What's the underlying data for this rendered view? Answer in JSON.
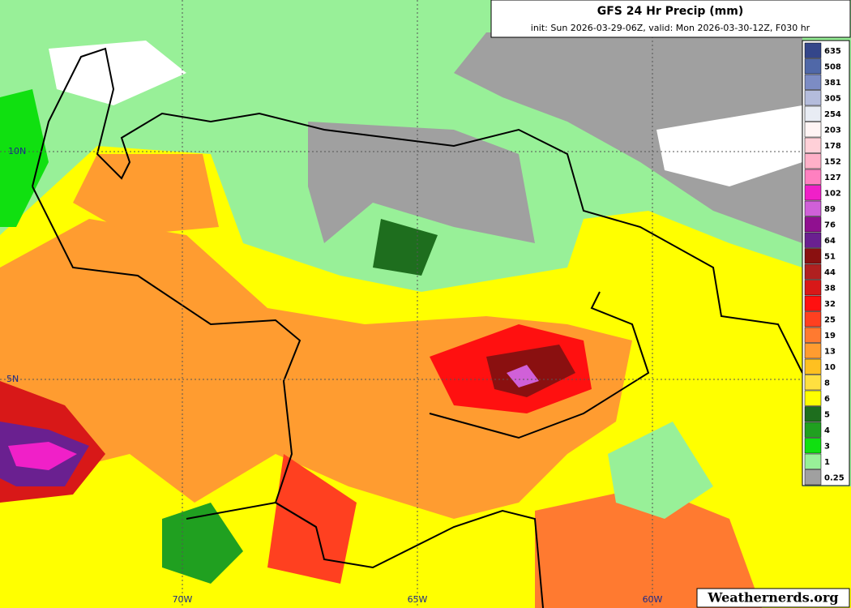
{
  "header": {
    "title": "GFS 24 Hr Precip (mm)",
    "subtitle": "init: Sun 2026-03-29-06Z, valid: Mon 2026-03-30-12Z, F030 hr"
  },
  "legend": {
    "items": [
      {
        "label": 635,
        "color": "#34468a"
      },
      {
        "label": 508,
        "color": "#5068a8"
      },
      {
        "label": 381,
        "color": "#7c8cc4"
      },
      {
        "label": 305,
        "color": "#b4bcdc"
      },
      {
        "label": 254,
        "color": "#e8ecf4"
      },
      {
        "label": 203,
        "color": "#fff4f4"
      },
      {
        "label": 178,
        "color": "#ffd0d8"
      },
      {
        "label": 152,
        "color": "#ffb0c8"
      },
      {
        "label": 127,
        "color": "#ff80c0"
      },
      {
        "label": 102,
        "color": "#f020c8"
      },
      {
        "label": 89,
        "color": "#d060d8"
      },
      {
        "label": 76,
        "color": "#901090"
      },
      {
        "label": 64,
        "color": "#6a2090"
      },
      {
        "label": 51,
        "color": "#8a1010"
      },
      {
        "label": 44,
        "color": "#b02020"
      },
      {
        "label": 38,
        "color": "#d81818"
      },
      {
        "label": 32,
        "color": "#ff1010"
      },
      {
        "label": 25,
        "color": "#ff4020"
      },
      {
        "label": 19,
        "color": "#ff7a30"
      },
      {
        "label": 13,
        "color": "#ff9c30"
      },
      {
        "label": 10,
        "color": "#ffc020"
      },
      {
        "label": 8,
        "color": "#ffe040"
      },
      {
        "label": 6,
        "color": "#ffff00"
      },
      {
        "label": 5,
        "color": "#1e6e1e"
      },
      {
        "label": 4,
        "color": "#20a020"
      },
      {
        "label": 3,
        "color": "#10e010"
      },
      {
        "label": 1,
        "color": "#98f098"
      },
      {
        "label": 0.25,
        "color": "#a0a0a0"
      }
    ]
  },
  "grid_labels": {
    "lat": [
      "10N",
      "5N"
    ],
    "lon": [
      "70W",
      "65W",
      "60W"
    ]
  },
  "watermark": "Weathernerds.org"
}
